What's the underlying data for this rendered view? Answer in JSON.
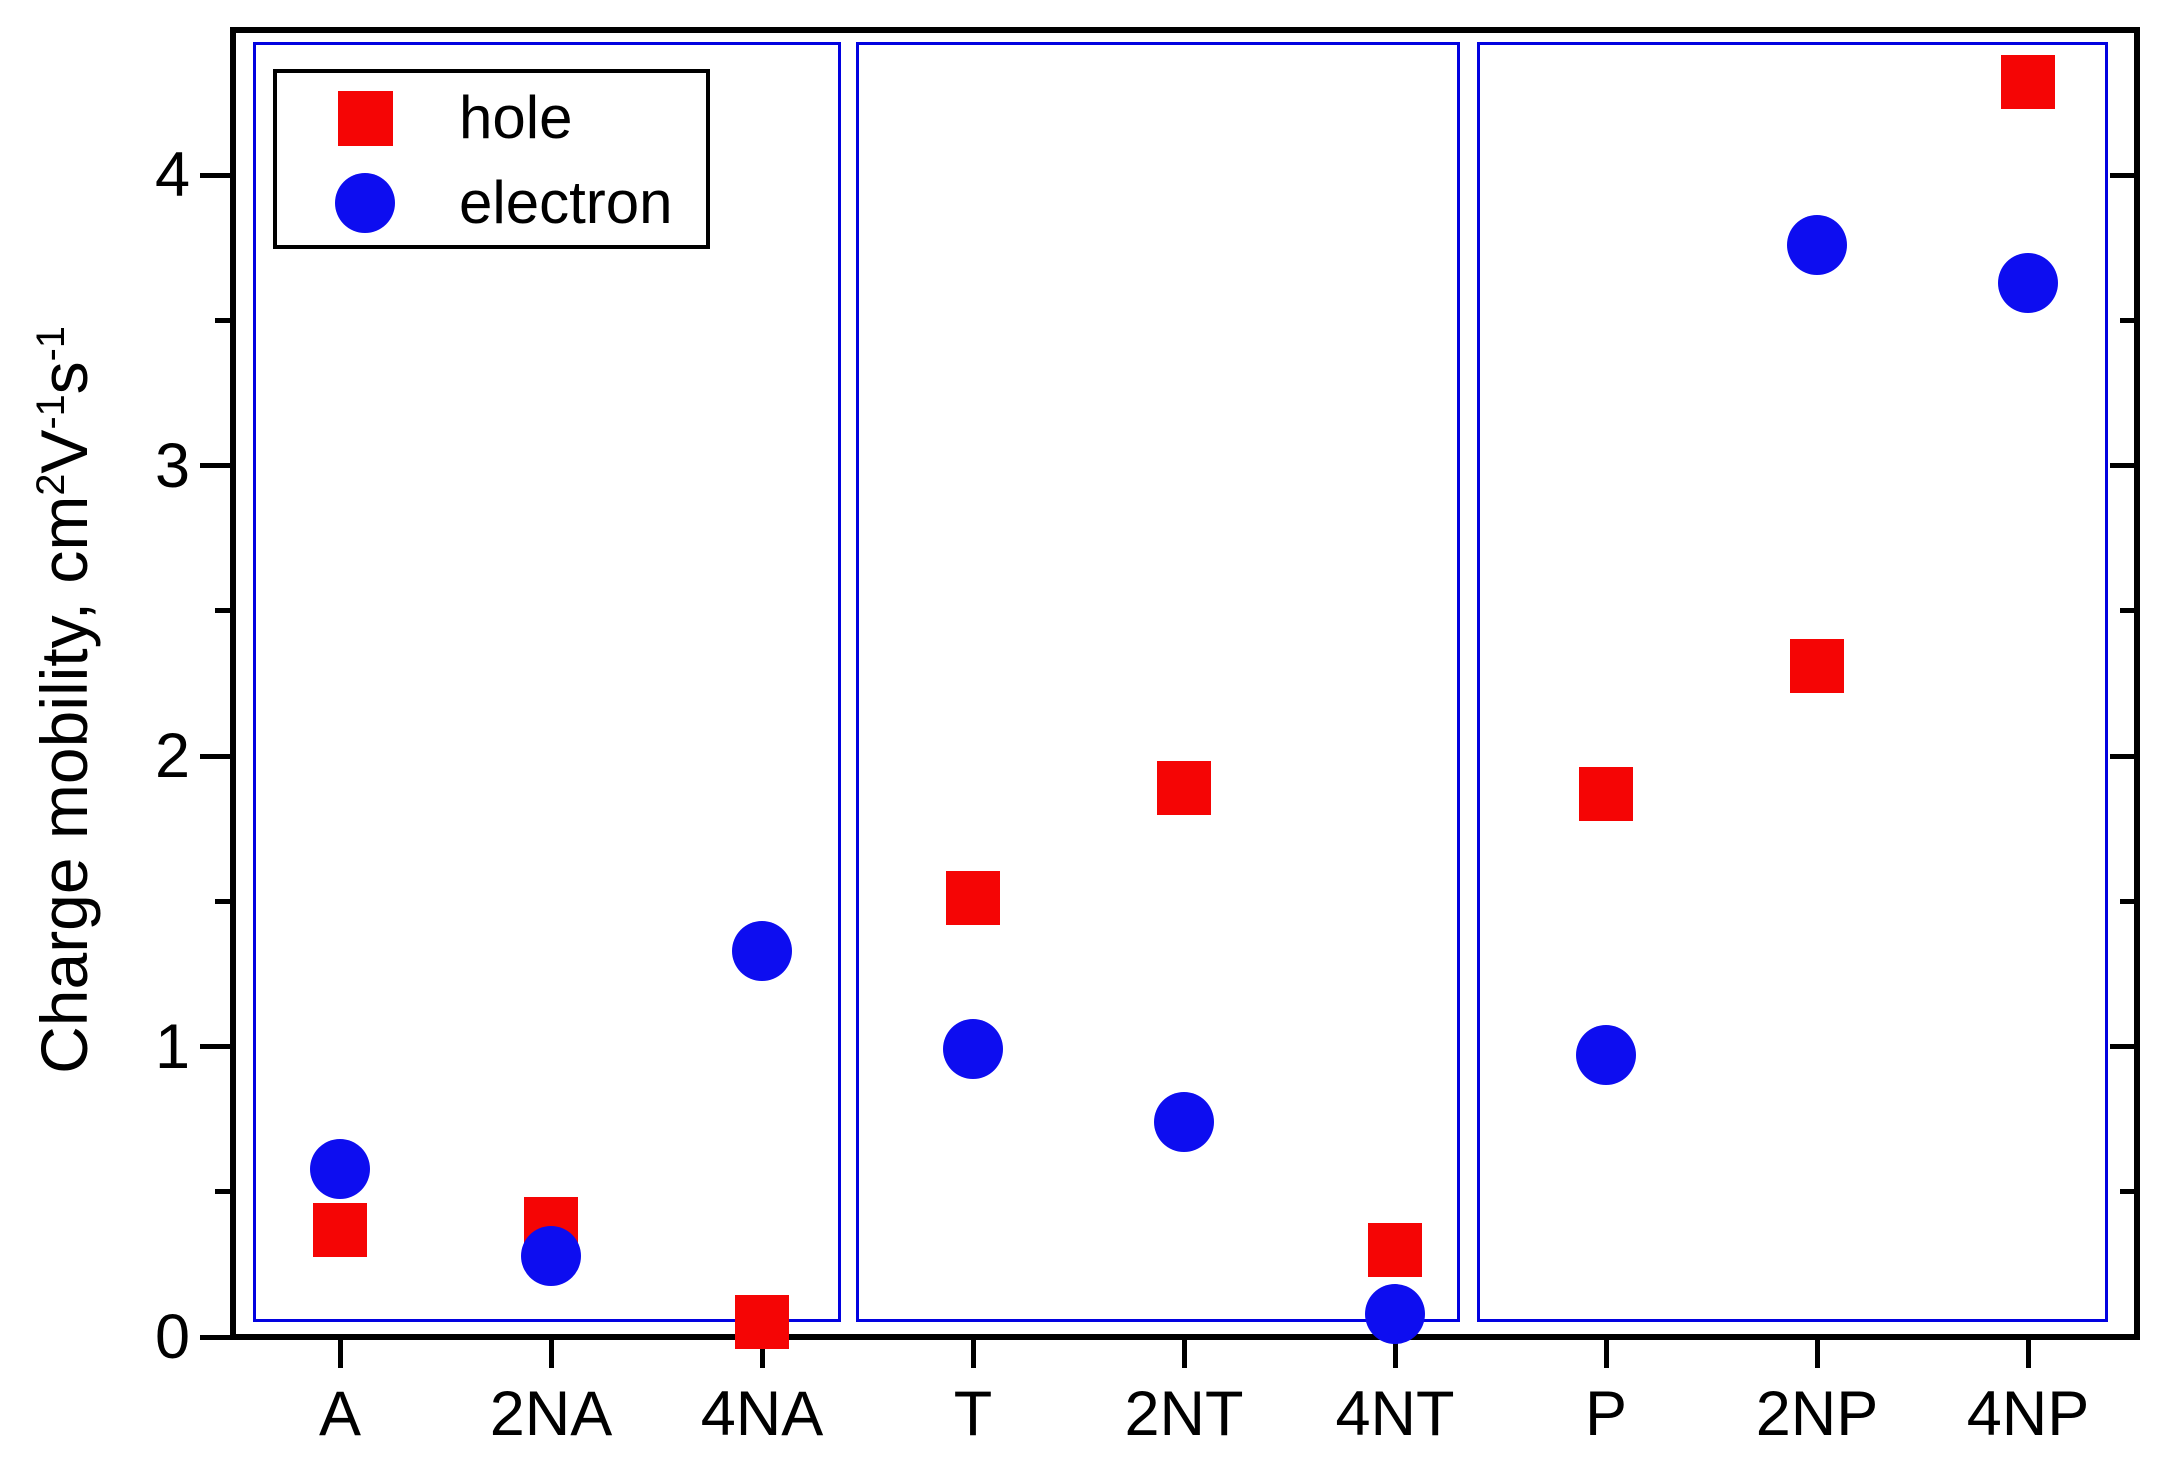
{
  "chart_data": {
    "type": "scatter",
    "title": "",
    "categories": [
      "A",
      "2NA",
      "4NA",
      "T",
      "2NT",
      "4NT",
      "P",
      "2NP",
      "4NP"
    ],
    "category_groups": [
      [
        "A",
        "2NA",
        "4NA"
      ],
      [
        "T",
        "2NT",
        "4NT"
      ],
      [
        "P",
        "2NP",
        "4NP"
      ]
    ],
    "series": [
      {
        "name": "hole",
        "marker": "square",
        "color": "#f50505",
        "values": [
          0.37,
          0.39,
          0.05,
          1.51,
          1.89,
          0.3,
          1.87,
          2.31,
          4.32
        ]
      },
      {
        "name": "electron",
        "marker": "circle",
        "color": "#0d0df0",
        "values": [
          0.58,
          0.28,
          1.33,
          0.99,
          0.74,
          0.08,
          0.97,
          3.76,
          3.63
        ]
      }
    ],
    "xlabel": "",
    "ylabel": "Charge mobility, cm²V⁻¹s⁻¹",
    "ylabel_parts": [
      {
        "text": "Charge mobility, cm"
      },
      {
        "sup": "2"
      },
      {
        "text": "V"
      },
      {
        "sup": "-1"
      },
      {
        "text": "s"
      },
      {
        "sup": "-1"
      }
    ],
    "ylim": [
      0,
      4.5
    ],
    "yticks_major": [
      0,
      1,
      2,
      3,
      4
    ],
    "yticks_minor": [
      0.5,
      1.5,
      2.5,
      3.5
    ],
    "grid": false,
    "legend": {
      "position": "top-left",
      "entries": [
        {
          "label": "hole",
          "marker": "square",
          "color": "#f50505"
        },
        {
          "label": "electron",
          "marker": "circle",
          "color": "#0d0df0"
        }
      ]
    },
    "group_box_color": "#0202e0",
    "frame_color": "#000000",
    "background_color": "#ffffff"
  }
}
